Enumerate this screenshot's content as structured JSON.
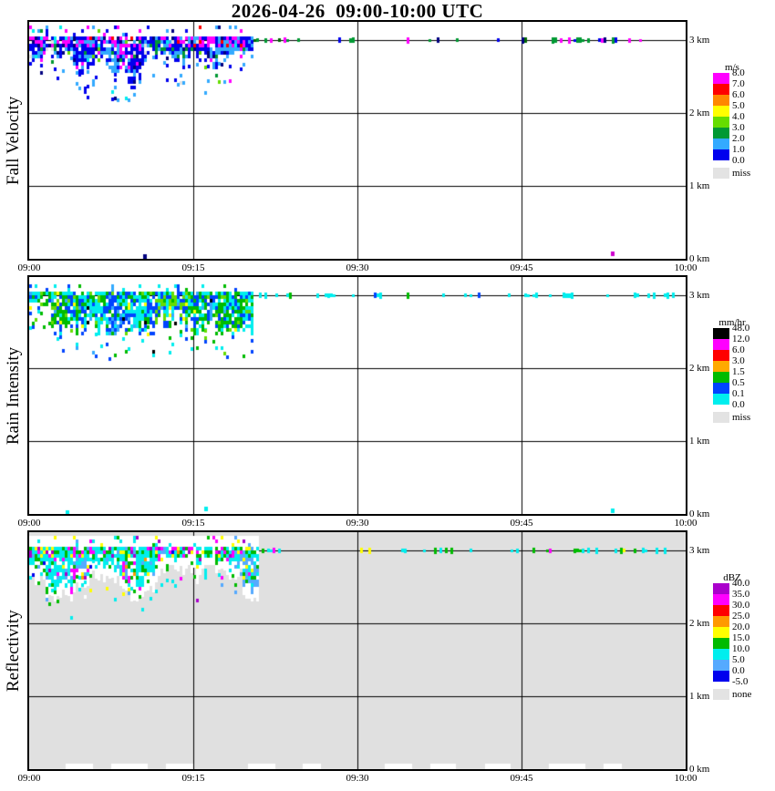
{
  "title": "2026-04-26  09:00-10:00 UTC",
  "chart_data": {
    "type": "heatmap",
    "title": "2026-04-26  09:00-10:00 UTC",
    "description": "Time-height quicklook of vertically pointing radar: fall velocity, rain intensity and reflectivity. Precipitation echo between 09:00 and 09:20 UTC from ~2.3 km up to 3.1 km, scattered echoes along the 3 km level for the rest of the hour.",
    "x_axis": {
      "ticks": [
        "09:00",
        "09:15",
        "09:30",
        "09:45",
        "10:00"
      ],
      "range_minutes": [
        0,
        60
      ]
    },
    "y_axis": {
      "ticks": [
        "0 km",
        "1 km",
        "2 km",
        "3 km"
      ],
      "range_km": [
        0,
        3.25
      ],
      "gridlines_km": [
        1,
        2,
        3
      ]
    },
    "panels": [
      {
        "key": "fall-velocity",
        "ylabel": "Fall Velocity",
        "plot_bg": "#ffffff",
        "legend": {
          "title": "m/s",
          "boundary_labels": [
            "8.0",
            "7.0",
            "6.0",
            "5.0",
            "4.0",
            "3.0",
            "2.0",
            "1.0",
            "0.0"
          ],
          "colors": [
            "#ff00ff",
            "#ff0000",
            "#ff8800",
            "#ffff00",
            "#66dd00",
            "#009933",
            "#33aaff",
            "#0000ee"
          ],
          "missing_label": "miss",
          "missing_color": "#e3e3e3"
        },
        "echo": {
          "t_start_min": 0,
          "t_end_min": 20.5,
          "h_top_km": 3.2,
          "base_min_km": 2.3,
          "base_max_km": 2.9,
          "colors": [
            [
              "#0000ee",
              40
            ],
            [
              "#33aaff",
              30
            ],
            [
              "#009933",
              6
            ],
            [
              "#ff00ff",
              8
            ],
            [
              "#000080",
              6
            ],
            [
              "#66dd00",
              3
            ],
            [
              "#00eeee",
              5
            ],
            [
              "#e3e3e3",
              2
            ]
          ],
          "top_colors": [
            [
              "#ff00ff",
              40
            ],
            [
              "#0000ee",
              25
            ],
            [
              "#000080",
              15
            ],
            [
              "#33aaff",
              12
            ],
            [
              "#ff0000",
              8
            ]
          ]
        },
        "top_line": {
          "height_km": 3.0,
          "colors": [
            [
              "#009933",
              50
            ],
            [
              "#006600",
              10
            ],
            [
              "#0000ee",
              15
            ],
            [
              "#000080",
              10
            ],
            [
              "#ff00ff",
              15
            ]
          ],
          "segments": [
            [
              20.5,
              24,
              0.35
            ],
            [
              24,
              27,
              0.1
            ],
            [
              27,
              30,
              0.3
            ],
            [
              30,
              34,
              0.15
            ],
            [
              34,
              39,
              0.25
            ],
            [
              39,
              45,
              0.06
            ],
            [
              45,
              51,
              0.3
            ],
            [
              51,
              59,
              0.28
            ]
          ]
        },
        "specks": [
          {
            "t": 10.4,
            "h": 0.06,
            "color": "#000080"
          },
          {
            "t": 53.2,
            "h": 0.1,
            "color": "#cc00cc"
          }
        ],
        "bottom_marks": []
      },
      {
        "key": "rain-intensity",
        "ylabel": "Rain Intensity",
        "plot_bg": "#ffffff",
        "legend": {
          "title": "mm/hr",
          "boundary_labels": [
            "48.0",
            "12.0",
            "6.0",
            "3.0",
            "1.5",
            "0.5",
            "0.1",
            "0.0"
          ],
          "colors": [
            "#000000",
            "#ff00ff",
            "#ff0000",
            "#ffaa00",
            "#00bb00",
            "#0044ff",
            "#00eeee"
          ],
          "missing_label": "miss",
          "missing_color": "#e3e3e3"
        },
        "echo": {
          "t_start_min": 0,
          "t_end_min": 20.5,
          "h_top_km": 3.15,
          "base_min_km": 2.5,
          "base_max_km": 2.95,
          "colors": [
            [
              "#0044ff",
              35
            ],
            [
              "#00eeee",
              28
            ],
            [
              "#00bb00",
              20
            ],
            [
              "#66dd00",
              6
            ],
            [
              "#ffff00",
              3
            ],
            [
              "#000000",
              2
            ],
            [
              "#33aaff",
              6
            ]
          ],
          "top_colors": [
            [
              "#00bb00",
              35
            ],
            [
              "#0044ff",
              30
            ],
            [
              "#00eeee",
              25
            ],
            [
              "#66dd00",
              10
            ]
          ]
        },
        "top_line": {
          "height_km": 3.0,
          "colors": [
            [
              "#00eeee",
              78
            ],
            [
              "#0044ff",
              12
            ],
            [
              "#00bb00",
              10
            ]
          ],
          "segments": [
            [
              20.5,
              24,
              0.35
            ],
            [
              24,
              27,
              0.1
            ],
            [
              27,
              30,
              0.3
            ],
            [
              30,
              34,
              0.15
            ],
            [
              34,
              39,
              0.25
            ],
            [
              39,
              45,
              0.06
            ],
            [
              45,
              51,
              0.3
            ],
            [
              51,
              59,
              0.28
            ]
          ]
        },
        "specks": [
          {
            "t": 3.3,
            "h": 0.05,
            "color": "#00eeee"
          },
          {
            "t": 16.0,
            "h": 0.1,
            "color": "#00eeee"
          },
          {
            "t": 53.2,
            "h": 0.08,
            "color": "#00eeee"
          }
        ],
        "bottom_marks": []
      },
      {
        "key": "reflectivity",
        "ylabel": "Reflectivity",
        "plot_bg": "#e0e0e0",
        "legend": {
          "title": "dBZ",
          "boundary_labels": [
            "40.0",
            "35.0",
            "30.0",
            "25.0",
            "20.0",
            "15.0",
            "10.0",
            "5.0",
            "0.0",
            "-5.0"
          ],
          "colors": [
            "#aa00cc",
            "#ff00ff",
            "#ff0000",
            "#ff9900",
            "#ffff00",
            "#00bb00",
            "#00eeee",
            "#55aaff",
            "#0000ee"
          ],
          "missing_label": "none",
          "missing_color": "#e3e3e3"
        },
        "echo": {
          "t_start_min": 0,
          "t_end_min": 21,
          "h_top_km": 3.2,
          "base_min_km": 2.45,
          "base_max_km": 2.95,
          "backdrop": "#ffffff",
          "colors": [
            [
              "#00eeee",
              42
            ],
            [
              "#00bb00",
              20
            ],
            [
              "#55aaff",
              12
            ],
            [
              "#ffff00",
              7
            ],
            [
              "#ff00ff",
              5
            ],
            [
              "#ff9900",
              3
            ],
            [
              "#0000ee",
              4
            ],
            [
              "#aa00cc",
              3
            ],
            [
              "#ffffff",
              4
            ]
          ],
          "top_colors": [
            [
              "#00eeee",
              35
            ],
            [
              "#00bb00",
              25
            ],
            [
              "#ff00ff",
              15
            ],
            [
              "#aa00cc",
              10
            ],
            [
              "#ffff00",
              15
            ]
          ]
        },
        "top_line": {
          "height_km": 3.0,
          "colors": [
            [
              "#00eeee",
              60
            ],
            [
              "#00bb00",
              25
            ],
            [
              "#ff00ff",
              8
            ],
            [
              "#ffff00",
              7
            ]
          ],
          "segments": [
            [
              21,
              24,
              0.35
            ],
            [
              24,
              27,
              0.1
            ],
            [
              27,
              30,
              0.3
            ],
            [
              30,
              34,
              0.15
            ],
            [
              34,
              39,
              0.25
            ],
            [
              39,
              45,
              0.06
            ],
            [
              45,
              51,
              0.3
            ],
            [
              51,
              59,
              0.28
            ]
          ]
        },
        "specks": [],
        "bottom_marks": [
          [
            3.3,
            5.8
          ],
          [
            7.5,
            10.8
          ],
          [
            12.5,
            15.0
          ],
          [
            20.0,
            22.5
          ],
          [
            25.0,
            26.7
          ],
          [
            32.5,
            35.0
          ],
          [
            36.7,
            39.0
          ],
          [
            41.7,
            44.0
          ],
          [
            47.5,
            50.8
          ],
          [
            52.5,
            54.2
          ]
        ]
      }
    ]
  }
}
